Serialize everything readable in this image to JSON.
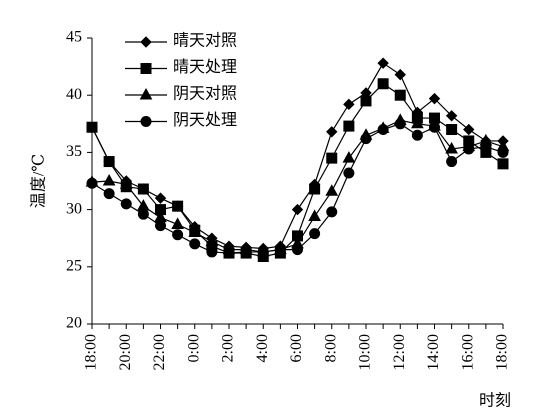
{
  "chart_data": {
    "type": "line",
    "y_label": "温度/℃",
    "x_label": "时刻",
    "categories": [
      "18:00",
      null,
      "20:00",
      null,
      "22:00",
      null,
      "0:00",
      null,
      "2:00",
      null,
      "4:00",
      null,
      "6:00",
      null,
      "8:00",
      null,
      "10:00",
      null,
      "12:00",
      null,
      "14:00",
      null,
      "16:00",
      null,
      "18:00"
    ],
    "series": [
      {
        "name": "晴天对照",
        "color": "#000000",
        "marker": "diamond",
        "values": [
          37.2,
          34.2,
          32.5,
          31.8,
          31.0,
          30.3,
          28.5,
          27.5,
          26.8,
          26.7,
          26.6,
          26.8,
          30.0,
          32.2,
          36.8,
          39.2,
          40.2,
          42.8,
          41.8,
          38.5,
          39.7,
          38.2,
          37.0,
          36.0,
          36.0
        ]
      },
      {
        "name": "晴天处理",
        "color": "#000000",
        "marker": "square",
        "values": [
          37.2,
          34.2,
          32.0,
          31.8,
          30.0,
          30.3,
          28.2,
          26.8,
          26.2,
          26.2,
          25.9,
          26.2,
          27.7,
          31.8,
          34.5,
          37.3,
          39.5,
          41.0,
          40.0,
          38.0,
          38.0,
          37.0,
          36.0,
          35.0,
          34.0
        ]
      },
      {
        "name": "阴天对照",
        "color": "#000000",
        "marker": "triangle",
        "values": [
          32.4,
          32.5,
          32.2,
          30.3,
          29.3,
          28.7,
          28.0,
          27.2,
          26.5,
          26.5,
          26.3,
          26.5,
          27.0,
          29.4,
          31.6,
          34.5,
          36.5,
          37.1,
          37.8,
          37.5,
          37.3,
          35.3,
          35.5,
          36.0,
          35.5
        ]
      },
      {
        "name": "阴天处理",
        "color": "#000000",
        "marker": "circle",
        "values": [
          32.3,
          31.4,
          30.5,
          29.6,
          28.6,
          27.8,
          27.0,
          26.3,
          26.2,
          26.3,
          26.3,
          26.5,
          26.5,
          27.9,
          29.8,
          33.2,
          36.2,
          37.0,
          37.5,
          36.5,
          37.2,
          34.2,
          35.3,
          35.5,
          35.0
        ]
      }
    ],
    "ylim": [
      20,
      45
    ],
    "yticks": [
      20,
      25,
      30,
      35,
      40,
      45
    ],
    "grid": false,
    "legend": "upper left"
  }
}
